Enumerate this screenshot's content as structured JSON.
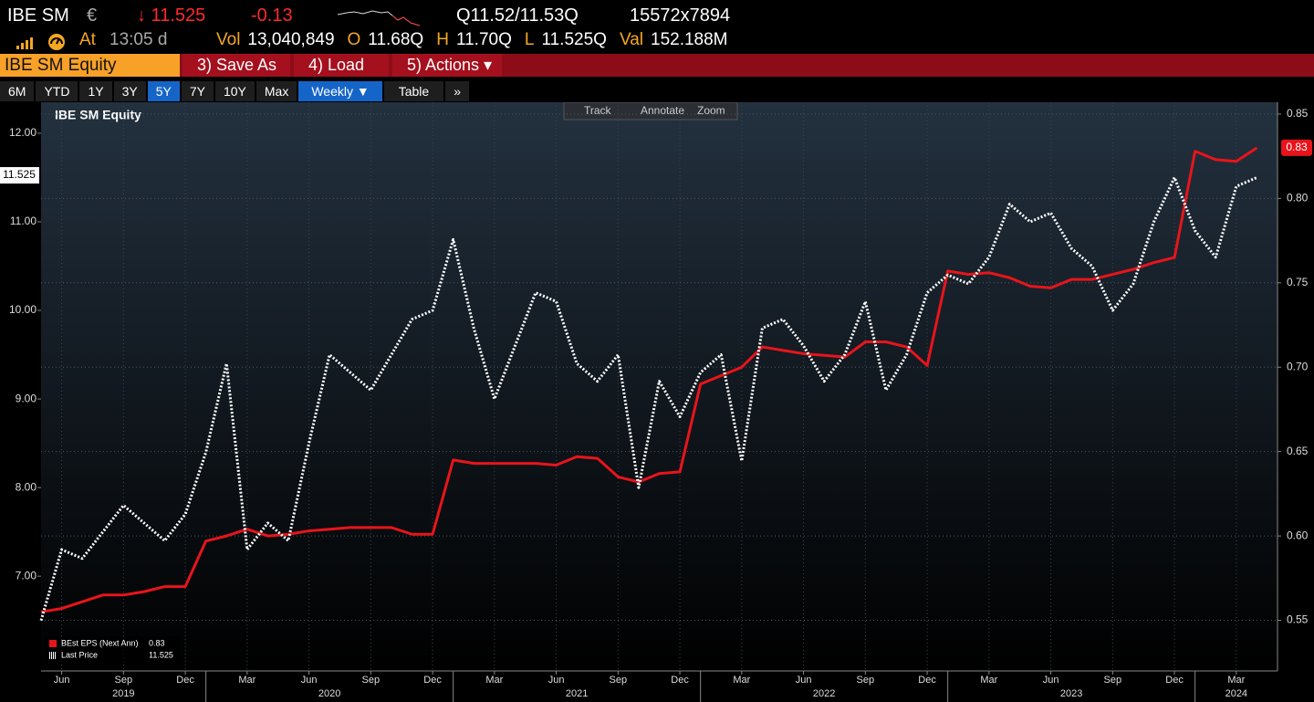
{
  "header": {
    "ticker": "IBE SM",
    "currency": "€",
    "last": "↓ 11.525",
    "change": "-0.13",
    "quote": "Q11.52/11.53Q",
    "size": "15572x7894",
    "time_label": "At",
    "time": "13:05 d",
    "stats": [
      {
        "label": "Vol",
        "value": "13,040,849"
      },
      {
        "label": "O",
        "value": "11.68Q"
      },
      {
        "label": "H",
        "value": "11.70Q"
      },
      {
        "label": "L",
        "value": "11.525Q"
      },
      {
        "label": "Val",
        "value": "152.188M"
      }
    ]
  },
  "menu": {
    "security": "IBE SM Equity",
    "items": [
      "3) Save As",
      "4) Load",
      "5) Actions ▾"
    ]
  },
  "toolbar": {
    "ranges": [
      "6M",
      "YTD",
      "1Y",
      "3Y",
      "5Y",
      "7Y",
      "10Y",
      "Max"
    ],
    "selected_range": "5Y",
    "frequency": "Weekly ▼",
    "table": "Table",
    "more": "»"
  },
  "chart_tools": [
    "Track",
    "Annotate",
    "Zoom"
  ],
  "chart_data": {
    "type": "line",
    "title": "IBE SM Equity",
    "grid": true,
    "legend": "bottom-left",
    "x": [
      "2019-05",
      "2019-06",
      "2019-07",
      "2019-08",
      "2019-09",
      "2019-10",
      "2019-11",
      "2019-12",
      "2020-01",
      "2020-02",
      "2020-03",
      "2020-04",
      "2020-05",
      "2020-06",
      "2020-07",
      "2020-08",
      "2020-09",
      "2020-10",
      "2020-11",
      "2020-12",
      "2021-01",
      "2021-02",
      "2021-03",
      "2021-04",
      "2021-05",
      "2021-06",
      "2021-07",
      "2021-08",
      "2021-09",
      "2021-10",
      "2021-11",
      "2021-12",
      "2022-01",
      "2022-02",
      "2022-03",
      "2022-04",
      "2022-05",
      "2022-06",
      "2022-07",
      "2022-08",
      "2022-09",
      "2022-10",
      "2022-11",
      "2022-12",
      "2023-01",
      "2023-02",
      "2023-03",
      "2023-04",
      "2023-05",
      "2023-06",
      "2023-07",
      "2023-08",
      "2023-09",
      "2023-10",
      "2023-11",
      "2023-12",
      "2024-01",
      "2024-02",
      "2024-03",
      "2024-04"
    ],
    "xlim": [
      "2019-05",
      "2024-05"
    ],
    "xticks": [
      {
        "value": "2019-06",
        "label": "Jun"
      },
      {
        "value": "2019-09",
        "label": "Sep"
      },
      {
        "value": "2019-12",
        "label": "Dec"
      },
      {
        "value": "2020-03",
        "label": "Mar"
      },
      {
        "value": "2020-06",
        "label": "Jun"
      },
      {
        "value": "2020-09",
        "label": "Sep"
      },
      {
        "value": "2020-12",
        "label": "Dec"
      },
      {
        "value": "2021-03",
        "label": "Mar"
      },
      {
        "value": "2021-06",
        "label": "Jun"
      },
      {
        "value": "2021-09",
        "label": "Sep"
      },
      {
        "value": "2021-12",
        "label": "Dec"
      },
      {
        "value": "2022-03",
        "label": "Mar"
      },
      {
        "value": "2022-06",
        "label": "Jun"
      },
      {
        "value": "2022-09",
        "label": "Sep"
      },
      {
        "value": "2022-12",
        "label": "Dec"
      },
      {
        "value": "2023-03",
        "label": "Mar"
      },
      {
        "value": "2023-06",
        "label": "Jun"
      },
      {
        "value": "2023-09",
        "label": "Sep"
      },
      {
        "value": "2023-12",
        "label": "Dec"
      },
      {
        "value": "2024-03",
        "label": "Mar"
      }
    ],
    "year_labels": [
      "2019",
      "2020",
      "2021",
      "2022",
      "2023",
      "2024"
    ],
    "ylim": [
      5.93,
      12.35
    ],
    "yticks": [
      {
        "value": 7,
        "label": "7.00"
      },
      {
        "value": 8,
        "label": "8.00"
      },
      {
        "value": 9,
        "label": "9.00"
      },
      {
        "value": 10,
        "label": "10.00"
      },
      {
        "value": 11,
        "label": "11.00"
      },
      {
        "value": 12,
        "label": "12.00"
      }
    ],
    "y2lim": [
      0.52,
      0.857
    ],
    "y2ticks": [
      0.55,
      {
        "value": 0.6,
        "label": "0.60"
      },
      0.65,
      {
        "value": 0.7,
        "label": "0.70"
      },
      0.75,
      {
        "value": 0.8,
        "label": "0.80"
      },
      0.85
    ],
    "series": [
      {
        "name": "BEst EPS (Next Ann)",
        "color": "#e8141b",
        "axis": "y2",
        "last_value": 0.83,
        "values": [
          0.555,
          0.557,
          0.561,
          0.565,
          0.565,
          0.567,
          0.57,
          0.57,
          0.597,
          0.6,
          0.604,
          0.6,
          0.601,
          0.603,
          0.604,
          0.605,
          0.605,
          0.605,
          0.601,
          0.601,
          0.645,
          0.643,
          0.643,
          0.643,
          0.643,
          0.642,
          0.647,
          0.646,
          0.635,
          0.632,
          0.637,
          0.638,
          0.69,
          0.695,
          0.7,
          0.712,
          0.71,
          0.708,
          0.707,
          0.706,
          0.715,
          0.715,
          0.712,
          0.701,
          0.757,
          0.755,
          0.756,
          0.753,
          0.748,
          0.747,
          0.752,
          0.752,
          0.755,
          0.758,
          0.762,
          0.765,
          0.828,
          0.823,
          0.822,
          0.83
        ]
      },
      {
        "name": "Last Price",
        "color": "#ffffff",
        "style": "dotted",
        "last_value": 11.525,
        "values": [
          6.5,
          7.3,
          7.2,
          7.5,
          7.8,
          7.6,
          7.4,
          7.7,
          8.4,
          9.4,
          7.3,
          7.6,
          7.4,
          8.5,
          9.5,
          9.3,
          9.1,
          9.5,
          9.9,
          10.0,
          10.8,
          9.8,
          9.0,
          9.6,
          10.2,
          10.1,
          9.4,
          9.2,
          9.5,
          8.0,
          9.2,
          8.8,
          9.3,
          9.5,
          8.3,
          9.8,
          9.9,
          9.6,
          9.2,
          9.5,
          10.1,
          9.1,
          9.5,
          10.2,
          10.4,
          10.3,
          10.6,
          11.2,
          11.0,
          11.1,
          10.7,
          10.5,
          10.0,
          10.3,
          11.0,
          11.5,
          10.9,
          10.6,
          11.4,
          11.5
        ]
      }
    ]
  }
}
